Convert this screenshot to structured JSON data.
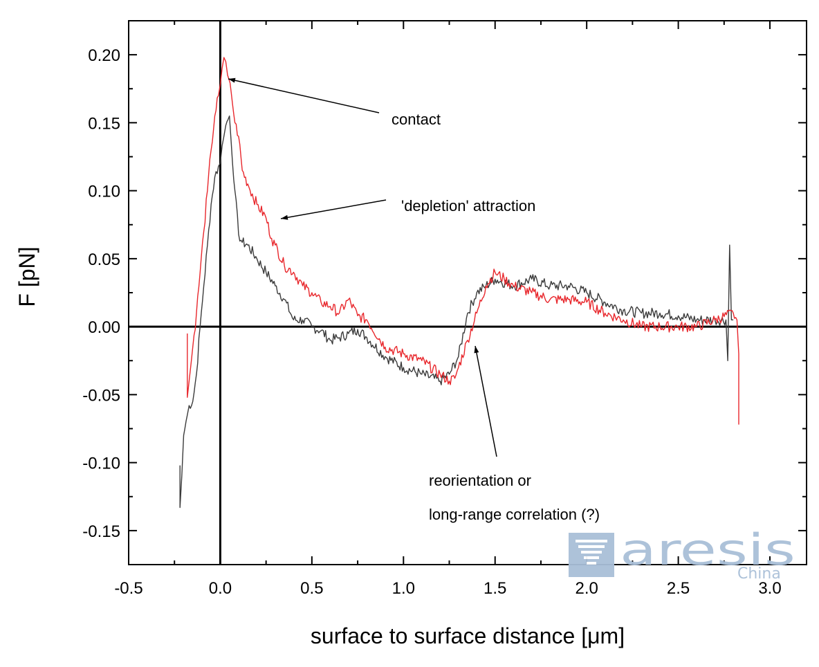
{
  "chart_data": {
    "type": "line",
    "title": "",
    "xlabel": "surface to surface distance [μm]",
    "ylabel": "F [pN]",
    "xlim": [
      -0.5,
      3.2
    ],
    "ylim": [
      -0.175,
      0.225
    ],
    "xticks": [
      -0.5,
      0.0,
      0.5,
      1.0,
      1.5,
      2.0,
      2.5,
      3.0
    ],
    "xtick_labels": [
      "-0.5",
      "0.0",
      "0.5",
      "1.0",
      "1.5",
      "2.0",
      "2.5",
      "3.0"
    ],
    "yticks": [
      -0.15,
      -0.1,
      -0.05,
      0.0,
      0.05,
      0.1,
      0.15,
      0.2
    ],
    "ytick_labels": [
      "-0.15",
      "-0.10",
      "-0.05",
      "0.00",
      "0.05",
      "0.10",
      "0.15",
      "0.20"
    ],
    "grid": false,
    "reference_lines": {
      "x": 0.0,
      "y": 0.0
    },
    "series": [
      {
        "color": "#3a3a3a",
        "x": [
          -0.22,
          -0.22,
          -0.21,
          -0.2,
          -0.18,
          -0.17,
          -0.15,
          -0.13,
          -0.11,
          -0.09,
          -0.07,
          -0.05,
          -0.03,
          -0.01,
          0.0,
          0.01,
          0.02,
          0.03,
          0.05,
          0.06,
          0.08,
          0.1,
          0.12,
          0.15,
          0.2,
          0.25,
          0.3,
          0.35,
          0.4,
          0.45,
          0.5,
          0.55,
          0.6,
          0.65,
          0.7,
          0.75,
          0.8,
          0.9,
          1.0,
          1.1,
          1.2,
          1.25,
          1.3,
          1.35,
          1.4,
          1.45,
          1.5,
          1.6,
          1.7,
          1.8,
          1.9,
          2.0,
          2.1,
          2.2,
          2.3,
          2.4,
          2.5,
          2.6,
          2.7,
          2.76,
          2.77,
          2.78,
          2.79,
          2.8
        ],
        "y": [
          -0.102,
          -0.133,
          -0.11,
          -0.08,
          -0.065,
          -0.058,
          -0.055,
          -0.035,
          0.0,
          0.03,
          0.06,
          0.09,
          0.11,
          0.118,
          0.12,
          0.133,
          0.14,
          0.148,
          0.155,
          0.135,
          0.1,
          0.068,
          0.062,
          0.06,
          0.05,
          0.04,
          0.03,
          0.02,
          0.005,
          0.005,
          0.0,
          -0.003,
          -0.01,
          -0.008,
          -0.005,
          -0.002,
          -0.008,
          -0.022,
          -0.03,
          -0.035,
          -0.04,
          -0.035,
          -0.022,
          0.01,
          0.025,
          0.03,
          0.035,
          0.03,
          0.035,
          0.03,
          0.03,
          0.025,
          0.018,
          0.012,
          0.01,
          0.01,
          0.008,
          0.005,
          0.005,
          0.005,
          -0.025,
          0.06,
          0.005,
          0.005
        ]
      },
      {
        "color": "#e8262b",
        "x": [
          -0.18,
          -0.18,
          -0.17,
          -0.15,
          -0.13,
          -0.11,
          -0.09,
          -0.07,
          -0.05,
          -0.03,
          -0.01,
          0.0,
          0.01,
          0.02,
          0.03,
          0.04,
          0.06,
          0.08,
          0.1,
          0.12,
          0.15,
          0.2,
          0.25,
          0.28,
          0.3,
          0.35,
          0.4,
          0.45,
          0.5,
          0.55,
          0.6,
          0.65,
          0.7,
          0.75,
          0.8,
          0.9,
          1.0,
          1.1,
          1.2,
          1.25,
          1.28,
          1.3,
          1.35,
          1.4,
          1.45,
          1.5,
          1.55,
          1.6,
          1.7,
          1.8,
          1.9,
          2.0,
          2.1,
          2.2,
          2.3,
          2.4,
          2.5,
          2.6,
          2.7,
          2.8,
          2.82,
          2.83,
          2.83
        ],
        "y": [
          -0.005,
          -0.052,
          -0.04,
          -0.015,
          0.01,
          0.04,
          0.07,
          0.1,
          0.13,
          0.155,
          0.17,
          0.178,
          0.19,
          0.198,
          0.195,
          0.185,
          0.172,
          0.15,
          0.14,
          0.115,
          0.105,
          0.09,
          0.08,
          0.065,
          0.06,
          0.045,
          0.04,
          0.03,
          0.025,
          0.018,
          0.015,
          0.01,
          0.02,
          0.008,
          0.005,
          -0.015,
          -0.02,
          -0.025,
          -0.035,
          -0.04,
          -0.038,
          -0.03,
          -0.01,
          0.01,
          0.03,
          0.04,
          0.035,
          0.03,
          0.025,
          0.02,
          0.02,
          0.018,
          0.01,
          0.005,
          0.0,
          0.0,
          0.0,
          0.0,
          0.005,
          0.01,
          0.005,
          -0.02,
          -0.072
        ]
      }
    ],
    "annotations": [
      {
        "text": "contact",
        "arrow_to": [
          0.03,
          0.182
        ]
      },
      {
        "text": "'depletion' attraction",
        "arrow_to": [
          0.33,
          0.08
        ]
      },
      {
        "text": "reorientation or",
        "arrow_to": [
          1.42,
          -0.015
        ]
      },
      {
        "text": "long-range correlation (?)",
        "arrow_to": null
      }
    ]
  },
  "watermark": {
    "text": "aresis",
    "subtext": "China",
    "color": "#a9bfd8"
  }
}
